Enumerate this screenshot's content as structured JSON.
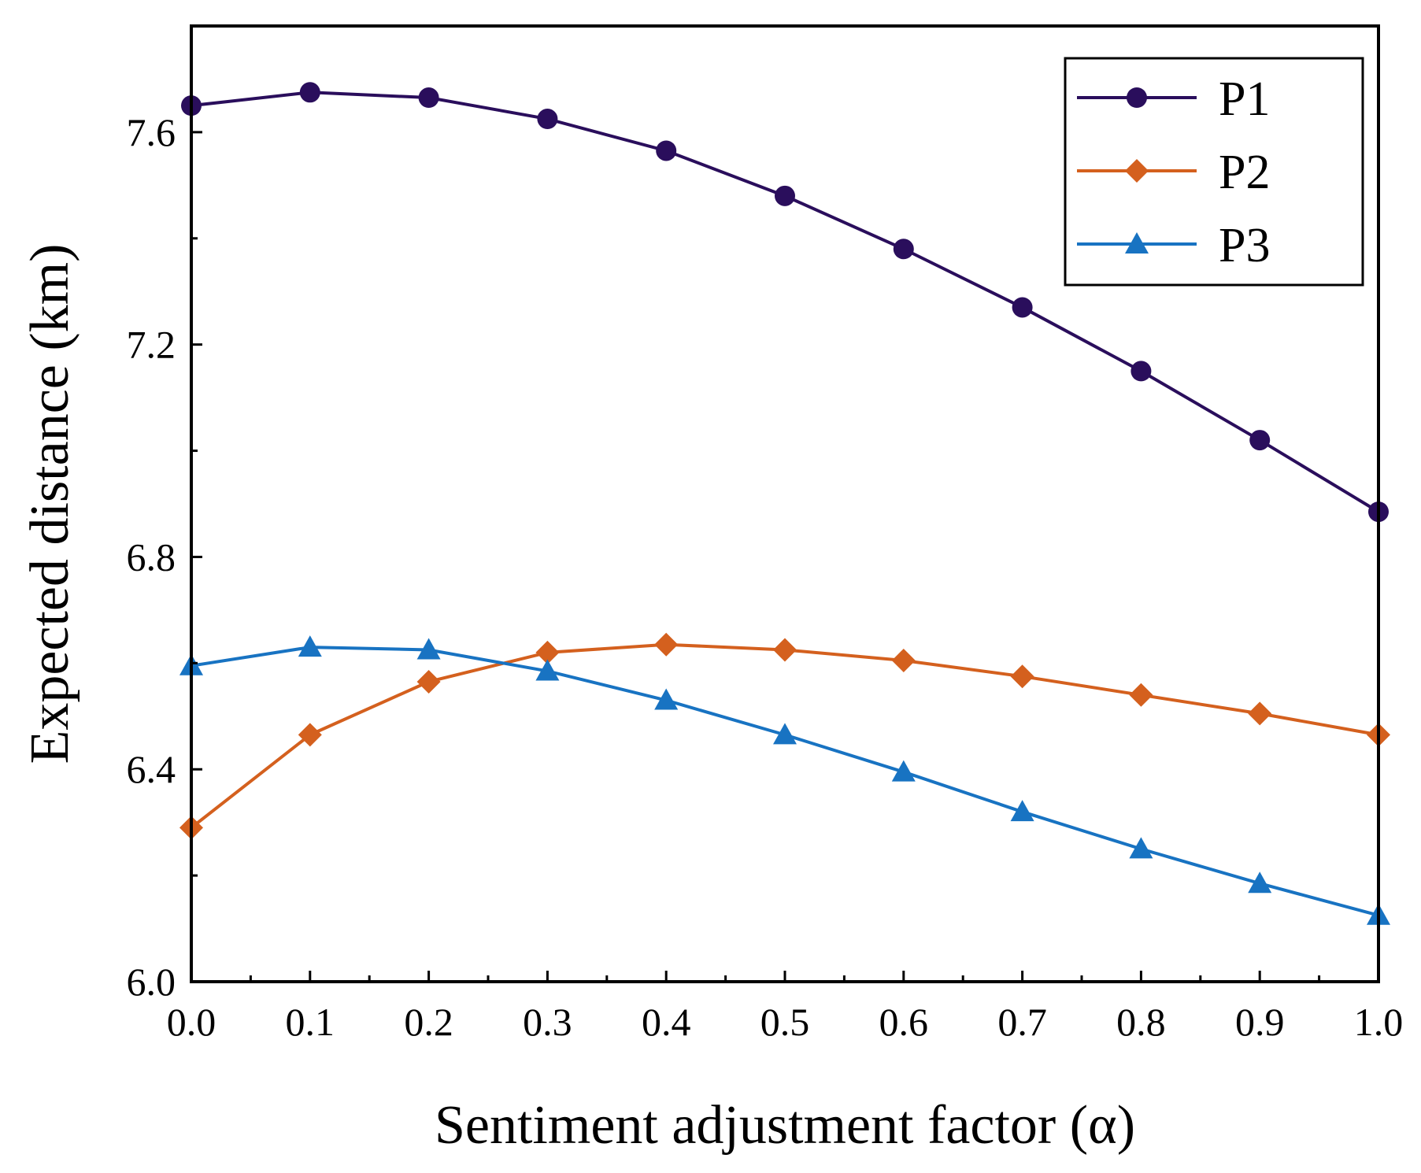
{
  "chart_data": {
    "type": "line",
    "xlabel": "Sentiment adjustment factor (α)",
    "ylabel": "Expected distance (km)",
    "xlim": [
      0.0,
      1.0
    ],
    "ylim": [
      6.0,
      7.8
    ],
    "x": [
      0.0,
      0.1,
      0.2,
      0.3,
      0.4,
      0.5,
      0.6,
      0.7,
      0.8,
      0.9,
      1.0
    ],
    "x_tick_labels": [
      "0.0",
      "0.1",
      "0.2",
      "0.3",
      "0.4",
      "0.5",
      "0.6",
      "0.7",
      "0.8",
      "0.9",
      "1.0"
    ],
    "y_ticks": [
      6.0,
      6.4,
      6.8,
      7.2,
      7.6
    ],
    "y_tick_labels": [
      "6.0",
      "6.4",
      "6.8",
      "7.2",
      "7.6"
    ],
    "y_minor_ticks": [
      6.2,
      6.6,
      7.0,
      7.4
    ],
    "x_minor_ticks": [
      0.05,
      0.15,
      0.25,
      0.35,
      0.45,
      0.55,
      0.65,
      0.75,
      0.85,
      0.95
    ],
    "grid": false,
    "legend_position": "top-right",
    "series": [
      {
        "name": "P1",
        "color": "#2a0e5c",
        "marker": "circle",
        "values": [
          7.65,
          7.675,
          7.665,
          7.625,
          7.565,
          7.48,
          7.38,
          7.27,
          7.15,
          7.02,
          6.885
        ]
      },
      {
        "name": "P2",
        "color": "#d4601e",
        "marker": "diamond",
        "values": [
          6.29,
          6.465,
          6.565,
          6.62,
          6.635,
          6.625,
          6.605,
          6.575,
          6.54,
          6.505,
          6.465
        ]
      },
      {
        "name": "P3",
        "color": "#1873c2",
        "marker": "triangle",
        "values": [
          6.595,
          6.63,
          6.625,
          6.585,
          6.53,
          6.465,
          6.395,
          6.32,
          6.25,
          6.185,
          6.125
        ]
      }
    ]
  }
}
